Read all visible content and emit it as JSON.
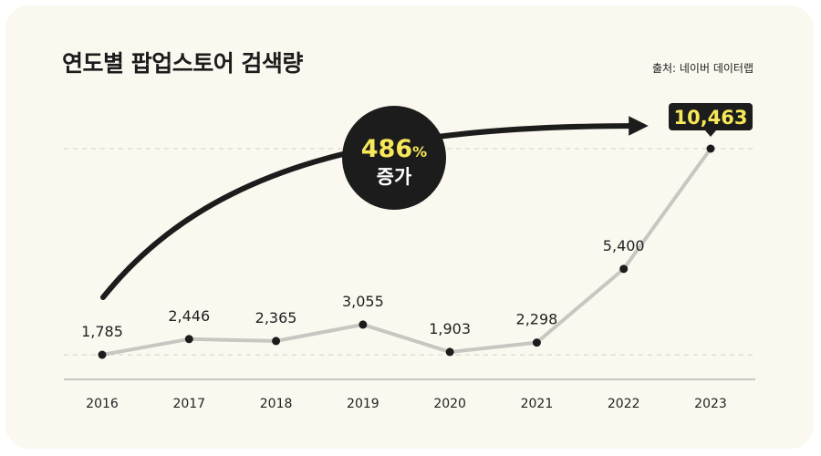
{
  "header": {
    "title": "연도별 팝업스토어 검색량",
    "source": "출처: 네이버 데이터랩"
  },
  "badge": {
    "percent": "486",
    "percent_unit": "%",
    "text": "증가"
  },
  "colors": {
    "background": "#faf8ef",
    "line": "#c8c6c1",
    "point": "#1c1c1c",
    "highlight_text": "#f7e85a",
    "callout_bg": "#1c1c1c"
  },
  "chart_data": {
    "type": "line",
    "title": "연도별 팝업스토어 검색량",
    "x": [
      "2016",
      "2017",
      "2018",
      "2019",
      "2020",
      "2021",
      "2022",
      "2023"
    ],
    "values": [
      1785,
      2446,
      2365,
      3055,
      1903,
      2298,
      5400,
      10463
    ],
    "labels": [
      "1,785",
      "2,446",
      "2,365",
      "3,055",
      "1,903",
      "2,298",
      "5,400",
      "10,463"
    ],
    "highlight_index": 7,
    "ylim": [
      1785,
      10463
    ],
    "xlabel": "",
    "ylabel": "",
    "grid": false,
    "annotation": "486% 증가"
  }
}
